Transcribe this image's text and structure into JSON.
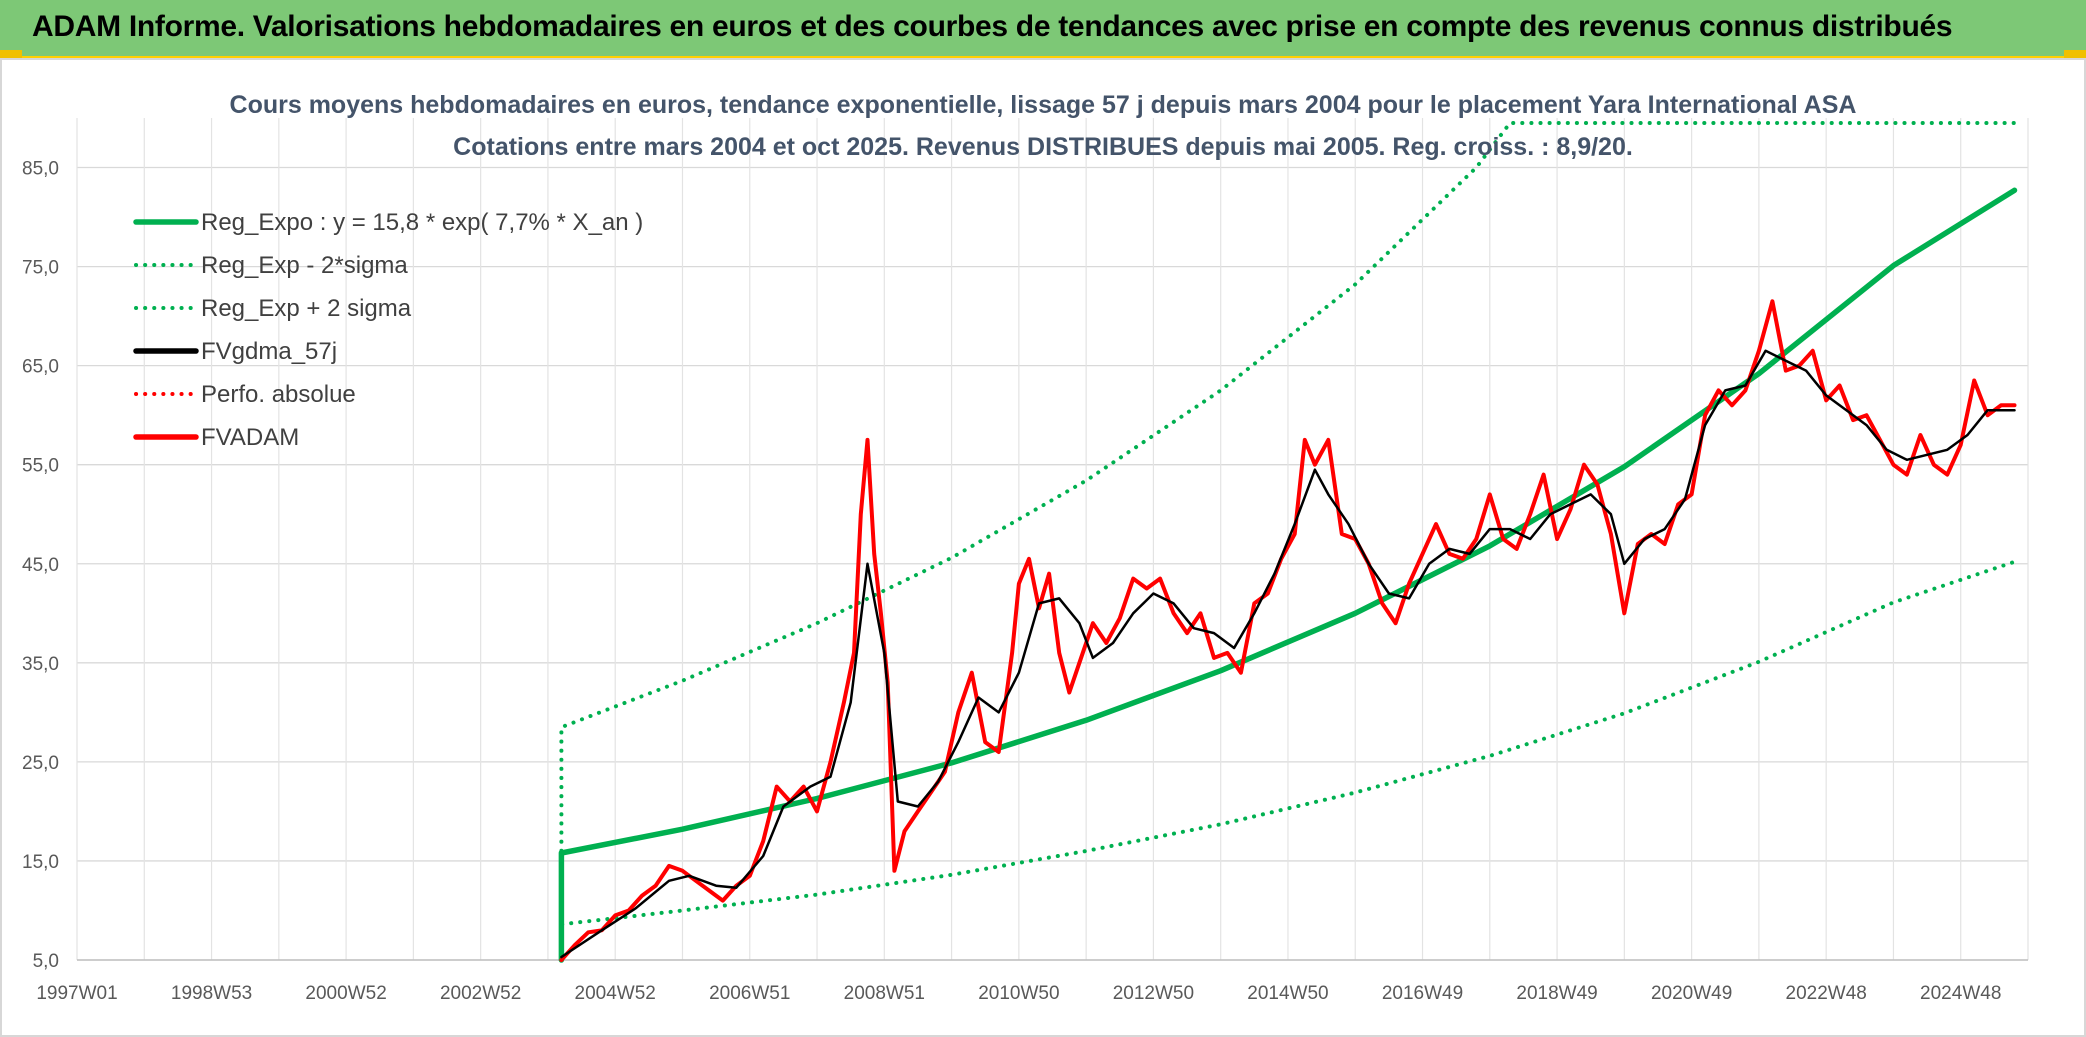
{
  "header": {
    "title": "ADAM Informe. Valorisations hebdomadaires en euros et des courbes de tendances avec prise en compte des revenus connus distribués"
  },
  "chart_data": {
    "type": "line",
    "title": "Cours moyens hebdomadaires en euros, tendance exponentielle, lissage 57 j depuis mars 2004 pour le placement Yara International ASA",
    "subtitle": "Cotations entre mars 2004 et oct 2025. Revenus DISTRIBUES depuis mai 2005. Reg. croiss. : 8,9/20.",
    "xlabel": "",
    "ylabel": "",
    "x_ticks": [
      "1997W01",
      "1998W53",
      "2000W52",
      "2002W52",
      "2004W52",
      "2006W51",
      "2008W51",
      "2010W50",
      "2012W50",
      "2014W50",
      "2016W49",
      "2018W49",
      "2020W49",
      "2022W48",
      "2024W48"
    ],
    "y_ticks": [
      "5,0",
      "15,0",
      "25,0",
      "35,0",
      "45,0",
      "55,0",
      "65,0",
      "75,0",
      "85,0"
    ],
    "xlim": [
      1997.0,
      2026.0
    ],
    "ylim": [
      5,
      90
    ],
    "grid": true,
    "legend_position": "top-left",
    "series": [
      {
        "name": "Reg_Expo : y = 15,8 * exp( 7,7% *  X_an )",
        "color": "#00b050",
        "style": "solid",
        "points": [
          [
            2004.2,
            5.0
          ],
          [
            2004.2,
            15.8
          ],
          [
            2006,
            18.2
          ],
          [
            2008,
            21.3
          ],
          [
            2010,
            24.9
          ],
          [
            2012,
            29.2
          ],
          [
            2014,
            34.2
          ],
          [
            2016,
            40.0
          ],
          [
            2018,
            46.8
          ],
          [
            2020,
            54.8
          ],
          [
            2022,
            64.2
          ],
          [
            2024,
            75.1
          ],
          [
            2025.8,
            82.7
          ]
        ]
      },
      {
        "name": "Reg_Exp - 2*sigma",
        "color": "#00b050",
        "style": "dotted",
        "points": [
          [
            2004.2,
            5.0
          ],
          [
            2004.2,
            8.6
          ],
          [
            2006,
            10.0
          ],
          [
            2008,
            11.6
          ],
          [
            2010,
            13.6
          ],
          [
            2012,
            16.0
          ],
          [
            2014,
            18.7
          ],
          [
            2016,
            21.9
          ],
          [
            2018,
            25.6
          ],
          [
            2020,
            29.9
          ],
          [
            2022,
            35.1
          ],
          [
            2024,
            41.1
          ],
          [
            2025.8,
            45.2
          ]
        ]
      },
      {
        "name": "Reg_Exp + 2 sigma",
        "color": "#00b050",
        "style": "dotted",
        "points": [
          [
            2004.2,
            5.0
          ],
          [
            2004.2,
            28.5
          ],
          [
            2006,
            33.2
          ],
          [
            2008,
            39.0
          ],
          [
            2010,
            45.6
          ],
          [
            2012,
            53.4
          ],
          [
            2014,
            62.5
          ],
          [
            2016,
            73.2
          ],
          [
            2017.8,
            85.0
          ],
          [
            2018.3,
            89.5
          ],
          [
            2025.8,
            89.5
          ]
        ]
      },
      {
        "name": "FVgdma_57j",
        "color": "#000000",
        "style": "solid",
        "points": [
          [
            2004.2,
            5.3
          ],
          [
            2004.8,
            8.0
          ],
          [
            2005.3,
            10.2
          ],
          [
            2005.8,
            13.0
          ],
          [
            2006.1,
            13.5
          ],
          [
            2006.5,
            12.5
          ],
          [
            2006.8,
            12.3
          ],
          [
            2007.2,
            15.5
          ],
          [
            2007.5,
            20.5
          ],
          [
            2007.9,
            22.5
          ],
          [
            2008.2,
            23.5
          ],
          [
            2008.5,
            31.0
          ],
          [
            2008.75,
            45.0
          ],
          [
            2009.0,
            36.0
          ],
          [
            2009.2,
            21.0
          ],
          [
            2009.5,
            20.5
          ],
          [
            2009.8,
            23.0
          ],
          [
            2010.1,
            27.0
          ],
          [
            2010.4,
            31.5
          ],
          [
            2010.7,
            30.0
          ],
          [
            2011.0,
            34.0
          ],
          [
            2011.3,
            41.0
          ],
          [
            2011.6,
            41.5
          ],
          [
            2011.9,
            39.0
          ],
          [
            2012.1,
            35.5
          ],
          [
            2012.4,
            37.0
          ],
          [
            2012.7,
            40.0
          ],
          [
            2013.0,
            42.0
          ],
          [
            2013.3,
            41.0
          ],
          [
            2013.6,
            38.5
          ],
          [
            2013.9,
            38.0
          ],
          [
            2014.2,
            36.5
          ],
          [
            2014.5,
            40.0
          ],
          [
            2014.8,
            44.0
          ],
          [
            2015.1,
            49.0
          ],
          [
            2015.4,
            54.5
          ],
          [
            2015.6,
            52.0
          ],
          [
            2015.9,
            49.0
          ],
          [
            2016.2,
            45.0
          ],
          [
            2016.5,
            42.0
          ],
          [
            2016.8,
            41.5
          ],
          [
            2017.1,
            45.0
          ],
          [
            2017.4,
            46.5
          ],
          [
            2017.7,
            46.0
          ],
          [
            2018.0,
            48.5
          ],
          [
            2018.3,
            48.5
          ],
          [
            2018.6,
            47.5
          ],
          [
            2018.9,
            50.0
          ],
          [
            2019.2,
            51.0
          ],
          [
            2019.5,
            52.0
          ],
          [
            2019.8,
            50.0
          ],
          [
            2020.0,
            45.0
          ],
          [
            2020.3,
            47.5
          ],
          [
            2020.6,
            48.5
          ],
          [
            2020.9,
            51.5
          ],
          [
            2021.2,
            59.0
          ],
          [
            2021.5,
            62.5
          ],
          [
            2021.8,
            63.0
          ],
          [
            2022.1,
            66.5
          ],
          [
            2022.4,
            65.5
          ],
          [
            2022.7,
            64.5
          ],
          [
            2023.0,
            62.0
          ],
          [
            2023.3,
            60.5
          ],
          [
            2023.6,
            59.0
          ],
          [
            2023.9,
            56.5
          ],
          [
            2024.2,
            55.5
          ],
          [
            2024.5,
            56.0
          ],
          [
            2024.8,
            56.5
          ],
          [
            2025.1,
            58.0
          ],
          [
            2025.4,
            60.5
          ],
          [
            2025.8,
            60.5
          ]
        ]
      },
      {
        "name": "Perfo. absolue",
        "color": "#ff0000",
        "style": "dotted",
        "points": []
      },
      {
        "name": "FVADAM",
        "color": "#ff0000",
        "style": "solid",
        "points": [
          [
            2004.2,
            5.0
          ],
          [
            2004.4,
            6.5
          ],
          [
            2004.6,
            7.8
          ],
          [
            2004.8,
            8.0
          ],
          [
            2005.0,
            9.5
          ],
          [
            2005.2,
            10.0
          ],
          [
            2005.4,
            11.5
          ],
          [
            2005.6,
            12.5
          ],
          [
            2005.8,
            14.5
          ],
          [
            2006.0,
            14.0
          ],
          [
            2006.2,
            13.0
          ],
          [
            2006.4,
            12.0
          ],
          [
            2006.6,
            11.0
          ],
          [
            2006.8,
            12.5
          ],
          [
            2007.0,
            13.5
          ],
          [
            2007.2,
            17.0
          ],
          [
            2007.4,
            22.5
          ],
          [
            2007.6,
            21.0
          ],
          [
            2007.8,
            22.5
          ],
          [
            2008.0,
            20.0
          ],
          [
            2008.2,
            25.0
          ],
          [
            2008.4,
            31.0
          ],
          [
            2008.55,
            36.0
          ],
          [
            2008.65,
            50.0
          ],
          [
            2008.75,
            57.5
          ],
          [
            2008.85,
            46.0
          ],
          [
            2008.95,
            40.0
          ],
          [
            2009.05,
            33.0
          ],
          [
            2009.15,
            14.0
          ],
          [
            2009.3,
            18.0
          ],
          [
            2009.5,
            20.0
          ],
          [
            2009.7,
            22.0
          ],
          [
            2009.9,
            24.0
          ],
          [
            2010.1,
            30.0
          ],
          [
            2010.3,
            34.0
          ],
          [
            2010.5,
            27.0
          ],
          [
            2010.7,
            26.0
          ],
          [
            2010.9,
            36.0
          ],
          [
            2011.0,
            43.0
          ],
          [
            2011.15,
            45.5
          ],
          [
            2011.3,
            40.5
          ],
          [
            2011.45,
            44.0
          ],
          [
            2011.6,
            36.0
          ],
          [
            2011.75,
            32.0
          ],
          [
            2011.9,
            35.0
          ],
          [
            2012.1,
            39.0
          ],
          [
            2012.3,
            37.0
          ],
          [
            2012.5,
            39.5
          ],
          [
            2012.7,
            43.5
          ],
          [
            2012.9,
            42.5
          ],
          [
            2013.1,
            43.5
          ],
          [
            2013.3,
            40.0
          ],
          [
            2013.5,
            38.0
          ],
          [
            2013.7,
            40.0
          ],
          [
            2013.9,
            35.5
          ],
          [
            2014.1,
            36.0
          ],
          [
            2014.3,
            34.0
          ],
          [
            2014.5,
            41.0
          ],
          [
            2014.7,
            42.0
          ],
          [
            2014.9,
            45.5
          ],
          [
            2015.1,
            48.0
          ],
          [
            2015.25,
            57.5
          ],
          [
            2015.4,
            55.0
          ],
          [
            2015.6,
            57.5
          ],
          [
            2015.8,
            48.0
          ],
          [
            2016.0,
            47.5
          ],
          [
            2016.2,
            45.0
          ],
          [
            2016.4,
            41.0
          ],
          [
            2016.6,
            39.0
          ],
          [
            2016.8,
            43.0
          ],
          [
            2017.0,
            46.0
          ],
          [
            2017.2,
            49.0
          ],
          [
            2017.4,
            46.0
          ],
          [
            2017.6,
            45.5
          ],
          [
            2017.8,
            47.5
          ],
          [
            2018.0,
            52.0
          ],
          [
            2018.2,
            47.5
          ],
          [
            2018.4,
            46.5
          ],
          [
            2018.6,
            50.0
          ],
          [
            2018.8,
            54.0
          ],
          [
            2019.0,
            47.5
          ],
          [
            2019.2,
            50.5
          ],
          [
            2019.4,
            55.0
          ],
          [
            2019.6,
            53.0
          ],
          [
            2019.8,
            48.0
          ],
          [
            2020.0,
            40.0
          ],
          [
            2020.2,
            47.0
          ],
          [
            2020.4,
            48.0
          ],
          [
            2020.6,
            47.0
          ],
          [
            2020.8,
            51.0
          ],
          [
            2021.0,
            52.0
          ],
          [
            2021.2,
            60.0
          ],
          [
            2021.4,
            62.5
          ],
          [
            2021.6,
            61.0
          ],
          [
            2021.8,
            62.5
          ],
          [
            2022.0,
            66.5
          ],
          [
            2022.2,
            71.5
          ],
          [
            2022.4,
            64.5
          ],
          [
            2022.6,
            65.0
          ],
          [
            2022.8,
            66.5
          ],
          [
            2023.0,
            61.5
          ],
          [
            2023.2,
            63.0
          ],
          [
            2023.4,
            59.5
          ],
          [
            2023.6,
            60.0
          ],
          [
            2023.8,
            57.5
          ],
          [
            2024.0,
            55.0
          ],
          [
            2024.2,
            54.0
          ],
          [
            2024.4,
            58.0
          ],
          [
            2024.6,
            55.0
          ],
          [
            2024.8,
            54.0
          ],
          [
            2025.0,
            57.0
          ],
          [
            2025.2,
            63.5
          ],
          [
            2025.4,
            60.0
          ],
          [
            2025.6,
            61.0
          ],
          [
            2025.8,
            61.0
          ]
        ]
      }
    ]
  }
}
